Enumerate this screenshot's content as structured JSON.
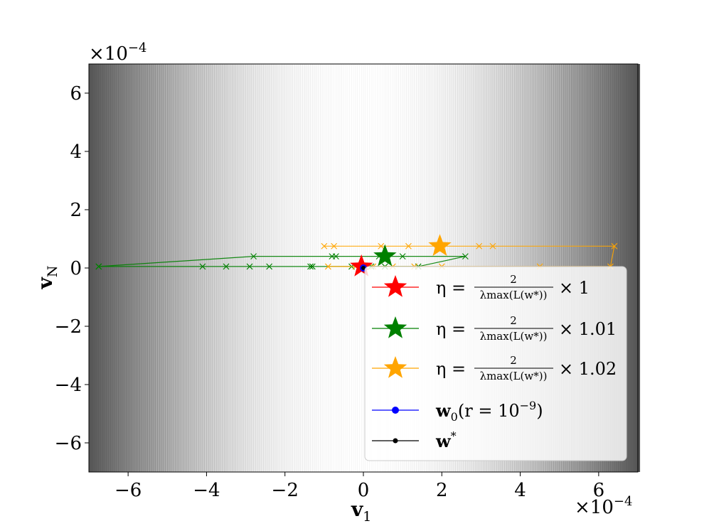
{
  "chart_data": {
    "type": "line",
    "xlabel": "v",
    "xlabel_sub": "1",
    "ylabel": "v",
    "ylabel_sub": "N",
    "xlim": [
      -7.0,
      7.0
    ],
    "ylim": [
      -7.0,
      7.0
    ],
    "x_multiplier": "×10",
    "x_multiplier_exp": "−4",
    "y_multiplier": "×10",
    "y_multiplier_exp": "−4",
    "x_ticks": [
      -6,
      -4,
      -2,
      0,
      2,
      4,
      6
    ],
    "y_ticks": [
      -6,
      -4,
      -2,
      0,
      2,
      4,
      6
    ],
    "x_tick_labels": [
      "−6",
      "−4",
      "−2",
      "0",
      "2",
      "4",
      "6"
    ],
    "y_tick_labels": [
      "−6",
      "−4",
      "−2",
      "0",
      "2",
      "4",
      "6"
    ],
    "background": "contour shading, dark at |v1| large, light near v1 = 0",
    "legend_position": "lower-right",
    "series": [
      {
        "name": "η = 2/λmax(L(w*)) × 1",
        "color": "#ff0000",
        "marker": "x",
        "x": [
          0.0,
          0.05,
          -0.05,
          0.03
        ],
        "y": [
          0.05,
          0.04,
          0.05,
          0.04
        ],
        "final": [
          -0.05,
          0.05
        ]
      },
      {
        "name": "η = 2/λmax(L(w*)) × 1.01",
        "color": "#008000",
        "marker": "x",
        "x": [
          -6.75,
          -4.1,
          -3.5,
          -2.9,
          -2.4,
          -1.35,
          -1.3,
          -0.3,
          0.2,
          0.55,
          1.4,
          2.6,
          1.0,
          0.4,
          -0.7,
          -0.8,
          -2.8,
          -6.75
        ],
        "y": [
          0.05,
          0.05,
          0.05,
          0.05,
          0.05,
          0.05,
          0.05,
          0.05,
          0.05,
          0.05,
          0.05,
          0.4,
          0.4,
          0.4,
          0.4,
          0.4,
          0.4,
          0.05
        ],
        "final": [
          0.55,
          0.4
        ]
      },
      {
        "name": "η = 2/λmax(L(w*)) × 1.02",
        "color": "#ffa500",
        "marker": "x",
        "x": [
          -0.2,
          -0.9,
          0.25,
          0.75,
          1.3,
          2.0,
          4.5,
          6.3,
          6.4,
          3.3,
          2.95,
          1.15,
          0.45,
          -0.75,
          -1.0
        ],
        "y": [
          0.05,
          0.05,
          0.05,
          0.05,
          0.05,
          0.05,
          0.05,
          0.05,
          0.75,
          0.75,
          0.75,
          0.75,
          0.75,
          0.75,
          0.75
        ],
        "final": [
          1.95,
          0.75
        ]
      }
    ],
    "points": [
      {
        "name": "w0(r = 10^-9)",
        "color": "#0000ff",
        "x": 0.0,
        "y": 0.0
      },
      {
        "name": "w*",
        "color": "#000000",
        "x": 0.0,
        "y": 0.0
      }
    ]
  },
  "legend": [
    {
      "prefix": "η =",
      "num": "2",
      "den": "λmax(L(w*))",
      "suffix": "× 1",
      "color": "#ff0000",
      "kind": "star"
    },
    {
      "prefix": "η =",
      "num": "2",
      "den": "λmax(L(w*))",
      "suffix": "× 1.01",
      "color": "#008000",
      "kind": "star"
    },
    {
      "prefix": "η =",
      "num": "2",
      "den": "λmax(L(w*))",
      "suffix": "× 1.02",
      "color": "#ffa500",
      "kind": "star"
    },
    {
      "label": "w",
      "sub": "0",
      "rest": "(r = 10",
      "exp": "−9",
      "close": ")",
      "color": "#0000ff",
      "kind": "dot"
    },
    {
      "label": "w",
      "sup": "*",
      "color": "#000000",
      "kind": "dot"
    }
  ]
}
